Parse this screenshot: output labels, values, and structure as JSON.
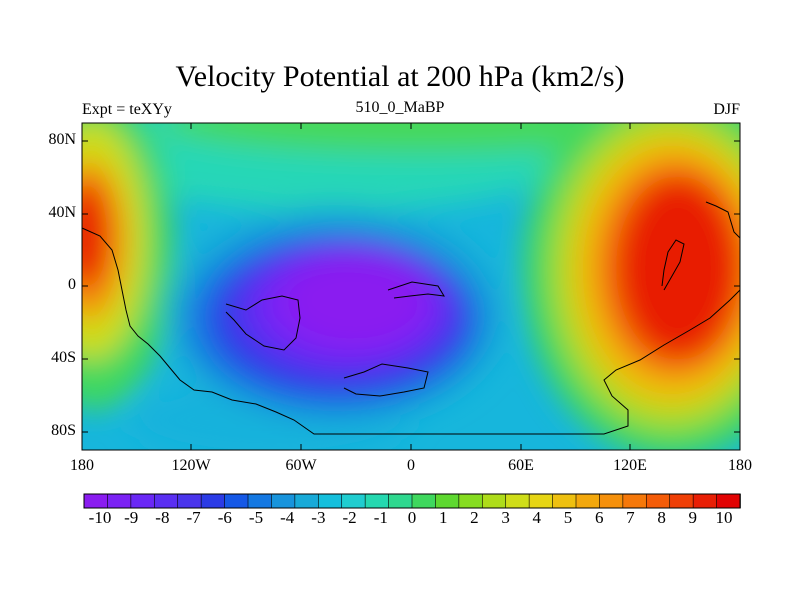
{
  "header": {
    "title": "Velocity Potential at 200 hPa (km2/s)",
    "left_label": "Expt = teXYy",
    "center_label": "510_0_MaBP",
    "right_label": "DJF"
  },
  "axes": {
    "y_ticks": [
      "80N",
      "40N",
      "0",
      "40S",
      "80S"
    ],
    "x_ticks": [
      "180",
      "120W",
      "60W",
      "0",
      "60E",
      "120E",
      "180"
    ]
  },
  "colorbar": {
    "labels": [
      "-10",
      "-9",
      "-8",
      "-7",
      "-6",
      "-5",
      "-4",
      "-3",
      "-2",
      "-1",
      "0",
      "1",
      "2",
      "3",
      "4",
      "5",
      "6",
      "7",
      "8",
      "9",
      "10"
    ],
    "colors": [
      "#8a1cf0",
      "#7b22f4",
      "#6a28f6",
      "#5a2ff2",
      "#4a35ec",
      "#2b3be6",
      "#1558e6",
      "#1478e2",
      "#1894dc",
      "#18aad8",
      "#15bfdc",
      "#20cdd0",
      "#25d8b0",
      "#2fd88f",
      "#3fd85e",
      "#5ed830",
      "#86dc20",
      "#aedc1a",
      "#cfdd18",
      "#e6d514",
      "#eec010",
      "#f3a80d",
      "#f5900b",
      "#f5780a",
      "#f45c08",
      "#ef3f06",
      "#e81f05",
      "#e20303"
    ]
  }
}
